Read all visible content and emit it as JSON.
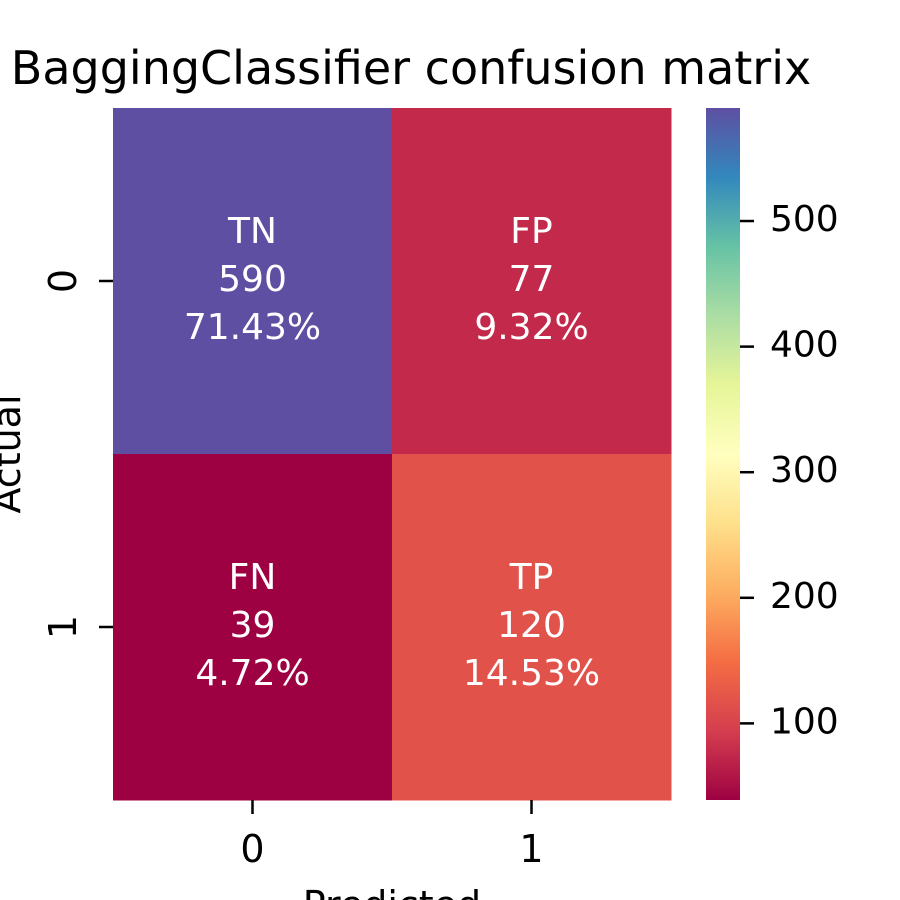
{
  "chart_data": {
    "type": "heatmap",
    "title": "BaggingClassifier confusion matrix",
    "xlabel": "Predicted",
    "ylabel": "Actual",
    "x_categories": [
      "0",
      "1"
    ],
    "y_categories": [
      "0",
      "1"
    ],
    "cells": [
      {
        "row": 0,
        "col": 0,
        "label": "TN",
        "count": "590",
        "percent": "71.43%",
        "value": 590,
        "color": "#5e4fa2"
      },
      {
        "row": 0,
        "col": 1,
        "label": "FP",
        "count": "77",
        "percent": "9.32%",
        "value": 77,
        "color": "#c2294a"
      },
      {
        "row": 1,
        "col": 0,
        "label": "FN",
        "count": "39",
        "percent": "4.72%",
        "value": 39,
        "color": "#9e0142"
      },
      {
        "row": 1,
        "col": 1,
        "label": "TP",
        "count": "120",
        "percent": "14.53%",
        "value": 120,
        "color": "#e1524a"
      }
    ],
    "colorbar": {
      "colormap": "Spectral",
      "range": [
        39,
        590
      ],
      "ticks": [
        100,
        200,
        300,
        400,
        500
      ],
      "tick_labels": [
        "100",
        "200",
        "300",
        "400",
        "500"
      ]
    }
  }
}
